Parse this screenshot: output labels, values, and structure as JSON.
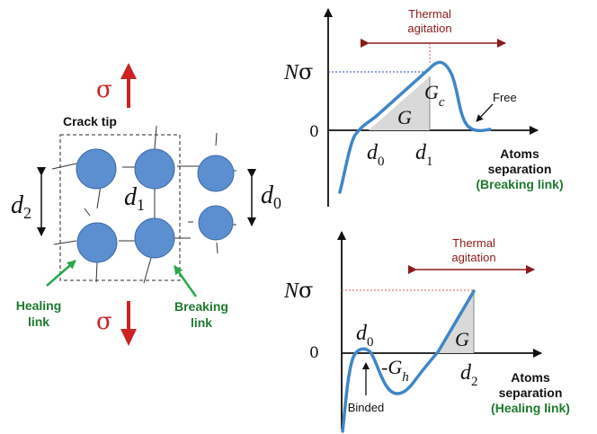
{
  "left": {
    "sigma_top": "σ",
    "sigma_bottom": "σ",
    "crack_tip": "Crack tip",
    "d2_main": "d",
    "d2_sub": "2",
    "d1_main": "d",
    "d1_sub": "1",
    "d0_main": "d",
    "d0_sub": "0",
    "healing_line1": "Healing",
    "healing_line2": "link",
    "breaking_line1": "Breaking",
    "breaking_line2": "link"
  },
  "top_graph": {
    "thermal_line1": "Thermal",
    "thermal_line2": "agitation",
    "y_label_N": "N",
    "y_label_sigma": "σ",
    "zero": "0",
    "G_label": "G",
    "Gc_main": "G",
    "Gc_sub": "c",
    "free_label": "Free",
    "d0_main": "d",
    "d0_sub": "0",
    "d1_main": "d",
    "d1_sub": "1",
    "x_line1": "Atoms",
    "x_line2": "separation",
    "x_line3": "(Breaking link)"
  },
  "bottom_graph": {
    "thermal_line1": "Thermal",
    "thermal_line2": "agitation",
    "y_label_N": "N",
    "y_label_sigma": "σ",
    "zero": "0",
    "d0_main": "d",
    "d0_sub": "0",
    "Gh_main": "-G",
    "Gh_sub": "h",
    "G_label": "G",
    "d2_main": "d",
    "d2_sub": "2",
    "binded_label": "Binded",
    "x_line1": "Atoms",
    "x_line2": "separation",
    "x_line3": "(Healing link)"
  },
  "colors": {
    "atom_fill": "#5b8fcf",
    "atom_stroke": "#3a6aa8",
    "curve": "#3f86c8",
    "sigma_red": "#cc2222",
    "thermal_dark_red": "#8b1a1a",
    "label_green": "#1e7a2e",
    "arrow_green": "#2aa84a",
    "shade": "#d9d9d9"
  }
}
